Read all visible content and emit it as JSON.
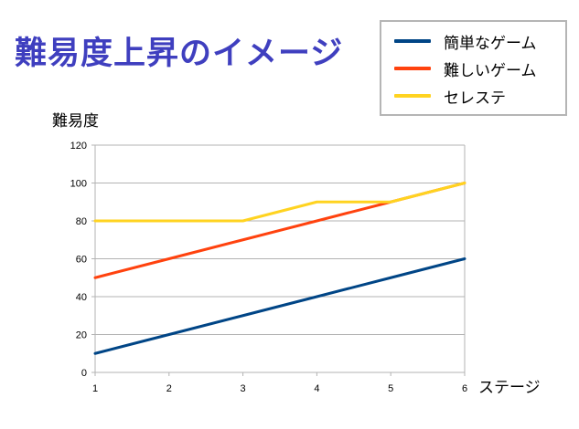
{
  "title": "難易度上昇のイメージ",
  "legend": [
    {
      "label": "簡単なゲーム",
      "color": "#004586"
    },
    {
      "label": "難しいゲーム",
      "color": "#ff420e"
    },
    {
      "label": "セレステ",
      "color": "#ffd320"
    }
  ],
  "chart_data": {
    "type": "line",
    "ylabel": "難易度",
    "xlabel": "ステージ",
    "x": [
      1,
      2,
      3,
      4,
      5,
      6
    ],
    "xlim": [
      1,
      6
    ],
    "ylim": [
      0,
      120
    ],
    "yticks": [
      0,
      20,
      40,
      60,
      80,
      100,
      120
    ],
    "grid": "horizontal",
    "legend_position": "top-right",
    "series": [
      {
        "name": "簡単なゲーム",
        "color": "#004586",
        "values": [
          10,
          20,
          30,
          40,
          50,
          60
        ]
      },
      {
        "name": "難しいゲーム",
        "color": "#ff420e",
        "values": [
          50,
          60,
          70,
          80,
          90,
          100
        ]
      },
      {
        "name": "セレステ",
        "color": "#ffd320",
        "values": [
          80,
          80,
          80,
          90,
          90,
          100
        ]
      }
    ]
  }
}
